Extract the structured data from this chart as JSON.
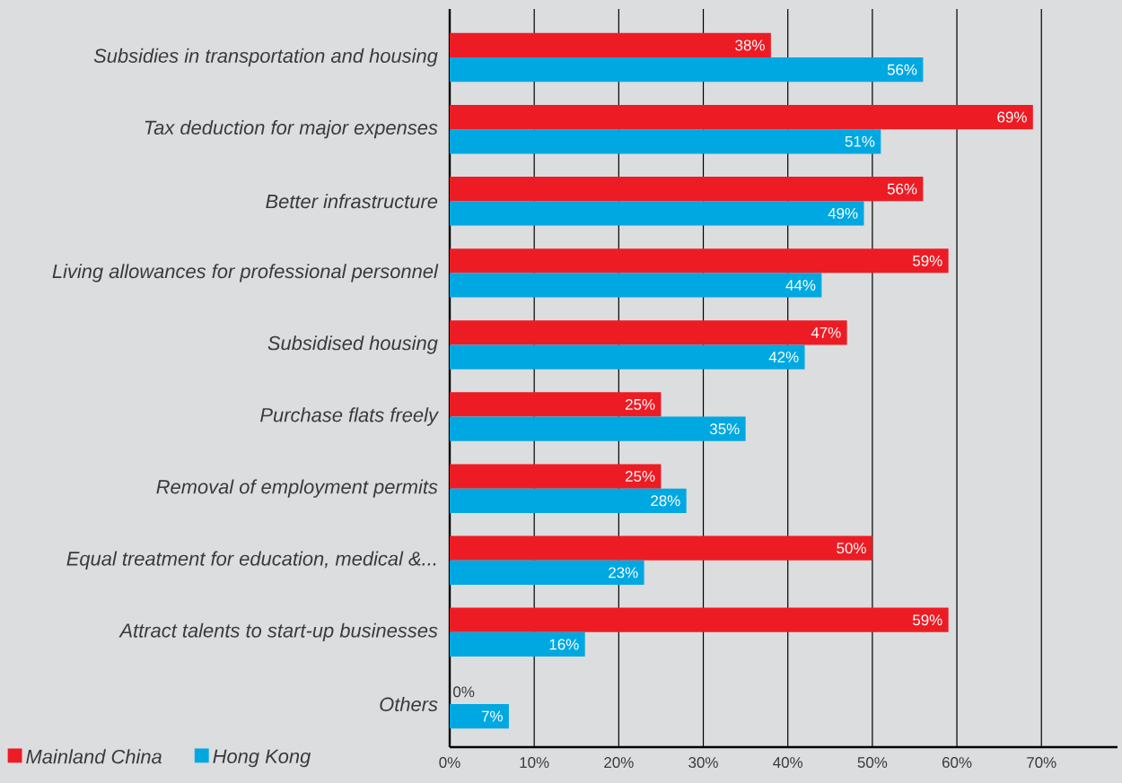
{
  "chart_data": {
    "type": "bar",
    "orientation": "horizontal",
    "categories": [
      "Subsidies in transportation and housing",
      "Tax deduction for major expenses",
      "Better infrastructure",
      "Living allowances for professional personnel",
      "Subsidised housing",
      "Purchase flats freely",
      "Removal of employment permits",
      "Equal treatment for education, medical &...",
      "Attract talents to start-up businesses",
      "Others"
    ],
    "series": [
      {
        "name": "Mainland China",
        "color": "#ed1c24",
        "values": [
          38,
          69,
          56,
          59,
          47,
          25,
          25,
          50,
          59,
          0
        ],
        "value_labels": [
          "38%",
          "69%",
          "56%",
          "59%",
          "47%",
          "25%",
          "25%",
          "50%",
          "59%",
          "0%"
        ]
      },
      {
        "name": "Hong Kong",
        "color": "#00a8e1",
        "values": [
          56,
          51,
          49,
          44,
          42,
          35,
          28,
          23,
          16,
          7
        ],
        "value_labels": [
          "56%",
          "51%",
          "49%",
          "44%",
          "42%",
          "35%",
          "28%",
          "23%",
          "16%",
          "7%"
        ]
      }
    ],
    "xlim": [
      0,
      79
    ],
    "xticks": [
      {
        "value": 0,
        "label": "0%"
      },
      {
        "value": 10,
        "label": "10%"
      },
      {
        "value": 20,
        "label": "20%"
      },
      {
        "value": 30,
        "label": "30%"
      },
      {
        "value": 40,
        "label": "40%"
      },
      {
        "value": 50,
        "label": "50%"
      },
      {
        "value": 60,
        "label": "60%"
      },
      {
        "value": 70,
        "label": "70%"
      }
    ],
    "grid": "x",
    "legend": "bottom left"
  }
}
